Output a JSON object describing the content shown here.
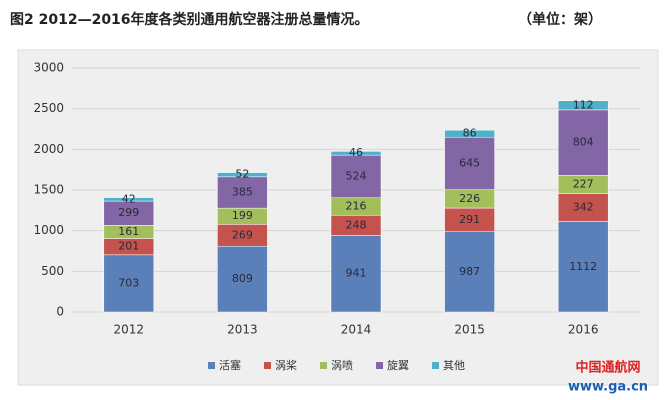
{
  "chart_data": {
    "type": "stacked-bar",
    "title": "图2 2012—2016年度各类别通用航空器注册总量情况。",
    "subtitle": "（单位：架）",
    "categories": [
      "2012",
      "2013",
      "2014",
      "2015",
      "2016"
    ],
    "series": [
      {
        "name": "活塞",
        "color": "#5b7fb8",
        "values": [
          703,
          809,
          941,
          987,
          1112
        ]
      },
      {
        "name": "涡桨",
        "color": "#c4524d",
        "values": [
          201,
          269,
          248,
          291,
          342
        ]
      },
      {
        "name": "涡喷",
        "color": "#a2bf5c",
        "values": [
          161,
          199,
          216,
          226,
          227
        ]
      },
      {
        "name": "旋翼",
        "color": "#8366a6",
        "values": [
          299,
          385,
          524,
          645,
          804
        ]
      },
      {
        "name": "其他",
        "color": "#4fb0c9",
        "values": [
          42,
          52,
          46,
          86,
          112
        ]
      }
    ],
    "ylim": [
      0,
      3000
    ],
    "yticks": [
      0,
      500,
      1000,
      1500,
      2000,
      2500,
      3000
    ],
    "grid": true
  },
  "watermark": {
    "name": "中国通航网",
    "url": "www.ga.cn"
  }
}
